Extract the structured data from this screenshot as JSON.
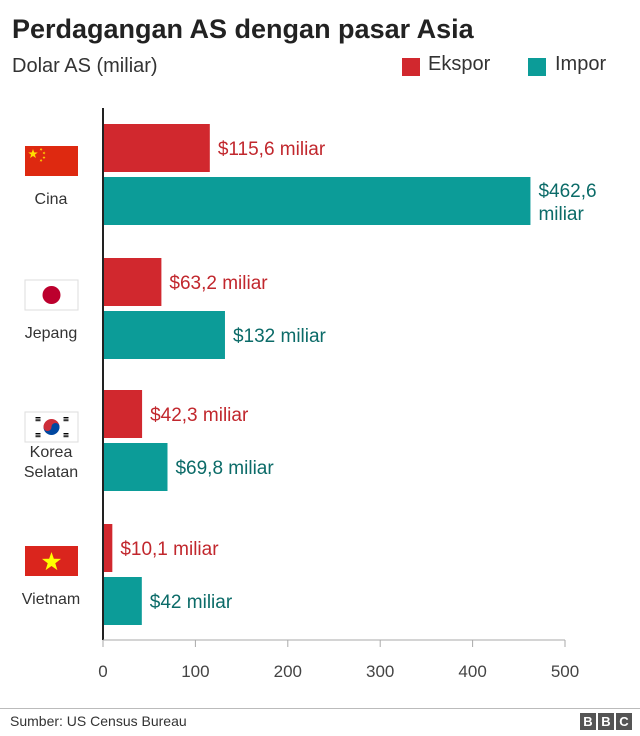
{
  "header": {
    "title": "Perdagangan AS dengan pasar Asia",
    "subtitle": "Dolar AS (miliar)"
  },
  "legend": [
    {
      "label": "Ekspor",
      "color": "#d1282e"
    },
    {
      "label": "Impor",
      "color": "#0c9c98"
    }
  ],
  "chart_data": {
    "type": "bar",
    "orientation": "horizontal",
    "categories": [
      "Cina",
      "Jepang",
      "Korea Selatan",
      "Vietnam"
    ],
    "category_lines": [
      [
        "Cina"
      ],
      [
        "Jepang"
      ],
      [
        "Korea",
        "Selatan"
      ],
      [
        "Vietnam"
      ]
    ],
    "series": [
      {
        "name": "Ekspor",
        "color": "#d1282e",
        "values": [
          115.6,
          63.2,
          42.3,
          10.1
        ],
        "labels": [
          "$115,6 miliar",
          "$63,2 miliar",
          "$42,3 miliar",
          "$10,1 miliar"
        ]
      },
      {
        "name": "Impor",
        "color": "#0c9c98",
        "values": [
          462.6,
          132,
          69.8,
          42
        ],
        "labels": [
          "$462,6 miliar",
          "$132 miliar",
          "$69,8 miliar",
          "$42 miliar"
        ]
      }
    ],
    "xlim": [
      0,
      500
    ],
    "xticks": [
      0,
      100,
      200,
      300,
      400,
      500
    ],
    "legend_position": "top-right",
    "grid": false,
    "flags": [
      "china-flag-icon",
      "japan-flag-icon",
      "south-korea-flag-icon",
      "vietnam-flag-icon"
    ],
    "label_colors": {
      "export": "#c1272d",
      "import": "#0b6b68"
    }
  },
  "footer": {
    "source": "Sumber: US Census Bureau",
    "logo_letters": [
      "B",
      "B",
      "C"
    ]
  }
}
